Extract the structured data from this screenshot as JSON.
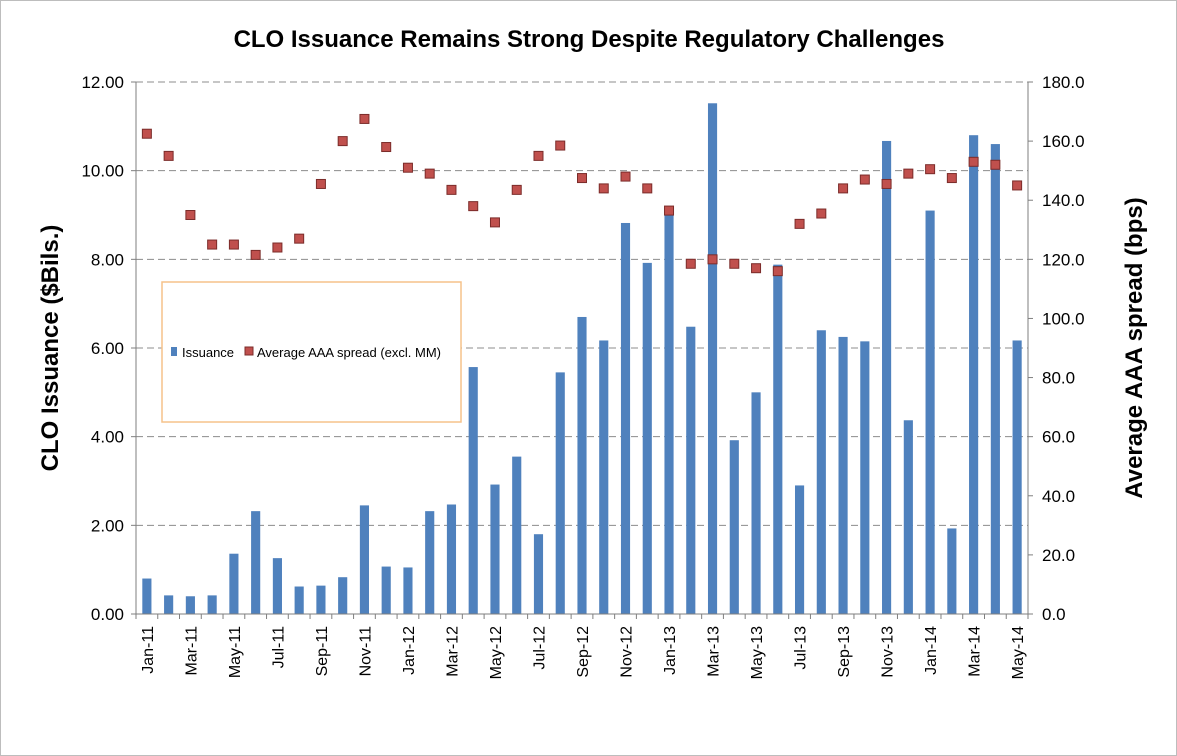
{
  "chart_data": {
    "type": "bar",
    "title": "CLO Issuance Remains Strong Despite Regulatory Challenges",
    "ylabel": "CLO Issuance ($Bils.)",
    "y2label": "Average AAA spread (bps)",
    "ylim": [
      0,
      12
    ],
    "y2lim": [
      0,
      180
    ],
    "yticks": [
      "0.00",
      "2.00",
      "4.00",
      "6.00",
      "8.00",
      "10.00",
      "12.00"
    ],
    "y2ticks": [
      "0.0",
      "20.0",
      "40.0",
      "60.0",
      "80.0",
      "100.0",
      "120.0",
      "140.0",
      "160.0",
      "180.0"
    ],
    "grid": "horizontal dashed",
    "legend_position": "left-middle",
    "categories": [
      "Jan-11",
      "Feb-11",
      "Mar-11",
      "Apr-11",
      "May-11",
      "Jun-11",
      "Jul-11",
      "Aug-11",
      "Sep-11",
      "Oct-11",
      "Nov-11",
      "Dec-11",
      "Jan-12",
      "Feb-12",
      "Mar-12",
      "Apr-12",
      "May-12",
      "Jun-12",
      "Jul-12",
      "Aug-12",
      "Sep-12",
      "Oct-12",
      "Nov-12",
      "Dec-12",
      "Jan-13",
      "Feb-13",
      "Mar-13",
      "Apr-13",
      "May-13",
      "Jun-13",
      "Jul-13",
      "Aug-13",
      "Sep-13",
      "Oct-13",
      "Nov-13",
      "Dec-13",
      "Jan-14",
      "Feb-14",
      "Mar-14",
      "Apr-14",
      "May-14"
    ],
    "x_tick_labels": [
      "Jan-11",
      "Mar-11",
      "May-11",
      "Jul-11",
      "Sep-11",
      "Nov-11",
      "Jan-12",
      "Mar-12",
      "May-12",
      "Jul-12",
      "Sep-12",
      "Nov-12",
      "Jan-13",
      "Mar-13",
      "May-13",
      "Jul-13",
      "Sep-13",
      "Nov-13",
      "Jan-14",
      "Mar-14",
      "May-14"
    ],
    "series": [
      {
        "name": "Issuance",
        "type": "bar",
        "axis": "left",
        "color": "#4f81bd",
        "values": [
          0.8,
          0.42,
          0.4,
          0.42,
          1.36,
          2.32,
          1.26,
          0.62,
          0.64,
          0.83,
          2.45,
          1.07,
          1.05,
          2.32,
          2.47,
          5.57,
          2.92,
          3.55,
          1.8,
          5.45,
          6.7,
          6.17,
          8.82,
          7.92,
          9.1,
          6.48,
          11.52,
          3.92,
          5.0,
          7.88,
          2.9,
          6.4,
          6.25,
          6.15,
          10.67,
          4.37,
          9.1,
          1.93,
          10.8,
          10.6,
          6.17
        ]
      },
      {
        "name": "Average AAA spread (excl. MM)",
        "type": "scatter",
        "axis": "right",
        "color": "#c0504d",
        "values": [
          162.5,
          155.0,
          135.0,
          125.0,
          125.0,
          121.5,
          124.0,
          127.0,
          145.5,
          160.0,
          167.5,
          158.0,
          151.0,
          149.0,
          143.5,
          138.0,
          132.5,
          143.5,
          155.0,
          158.5,
          147.5,
          144.0,
          148.0,
          144.0,
          136.5,
          118.5,
          120.0,
          118.5,
          117.0,
          116.0,
          132.0,
          135.5,
          144.0,
          147.0,
          145.5,
          149.0,
          150.5,
          147.5,
          153.0,
          152.0,
          145.0
        ]
      }
    ]
  }
}
